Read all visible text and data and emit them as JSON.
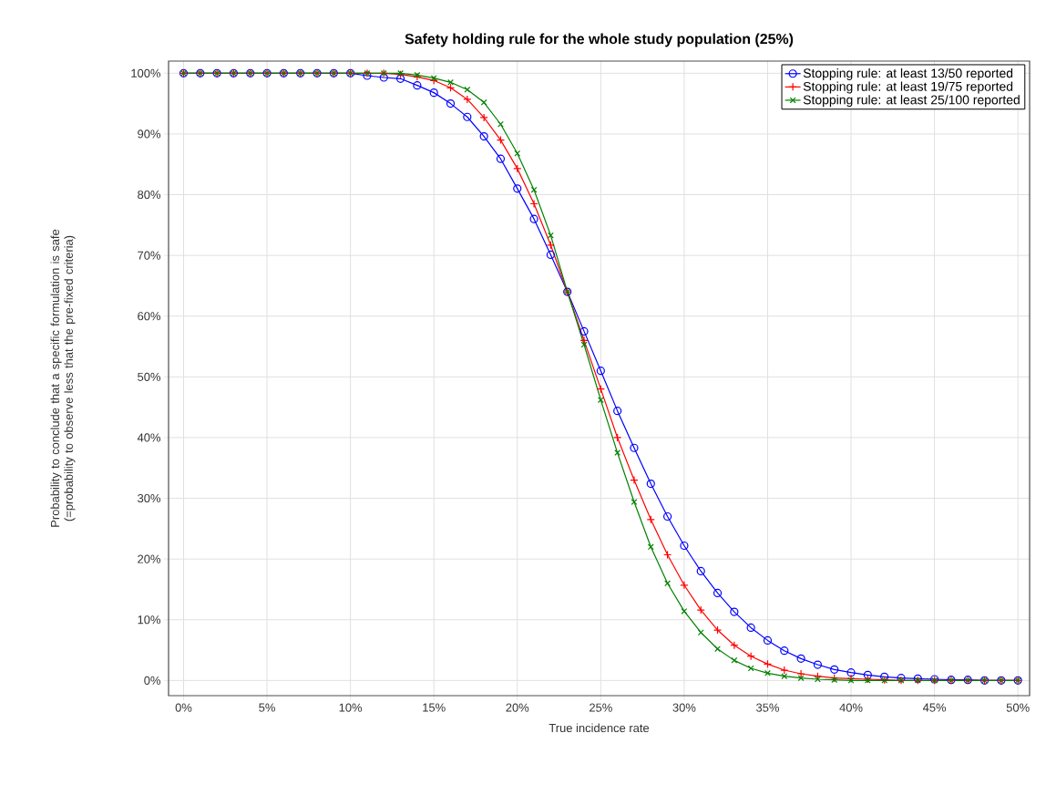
{
  "chart_data": {
    "type": "line",
    "title": "Safety holding rule for the whole study population (25%)",
    "xlabel": "True incidence rate",
    "ylabel": "Probability to conclude that a specific formulation is safe (=probability to observe less that the pre-fixed criteria)",
    "x": [
      0,
      1,
      2,
      3,
      4,
      5,
      6,
      7,
      8,
      9,
      10,
      11,
      12,
      13,
      14,
      15,
      16,
      17,
      18,
      19,
      20,
      21,
      22,
      23,
      24,
      25,
      26,
      27,
      28,
      29,
      30,
      31,
      32,
      33,
      34,
      35,
      36,
      37,
      38,
      39,
      40,
      41,
      42,
      43,
      44,
      45,
      46,
      47,
      48,
      49,
      50
    ],
    "series": [
      {
        "name": "Stopping rule: at least 13/50 reported",
        "color": "#0000ff",
        "marker": "circle",
        "values": [
          100,
          100,
          100,
          100,
          100,
          100,
          100,
          100,
          100,
          100,
          100,
          99.6,
          99.3,
          99.1,
          98,
          96.8,
          95,
          92.8,
          89.6,
          85.9,
          81,
          76,
          70.1,
          64,
          57.5,
          51,
          44.4,
          38.3,
          32.4,
          27,
          22.2,
          18,
          14.4,
          11.3,
          8.7,
          6.6,
          4.9,
          3.6,
          2.6,
          1.8,
          1.3,
          0.9,
          0.6,
          0.4,
          0.3,
          0.2,
          0.1,
          0.1,
          0,
          0,
          0
        ]
      },
      {
        "name": "Stopping rule: at least 19/75 reported",
        "color": "#ff0000",
        "marker": "plus",
        "values": [
          100,
          100,
          100,
          100,
          100,
          100,
          100,
          100,
          100,
          100,
          100,
          100,
          100,
          99.8,
          99.4,
          98.8,
          97.6,
          95.7,
          92.7,
          89,
          84.3,
          78.5,
          71.7,
          64,
          56,
          48,
          40,
          33,
          26.5,
          20.7,
          15.7,
          11.6,
          8.3,
          5.8,
          4,
          2.7,
          1.7,
          1.1,
          0.7,
          0.4,
          0.3,
          0.2,
          0.1,
          0,
          0,
          0,
          0,
          0,
          0,
          0,
          0
        ]
      },
      {
        "name": "Stopping rule: at least 25/100 reported",
        "color": "#008000",
        "marker": "cross",
        "values": [
          100,
          100,
          100,
          100,
          100,
          100,
          100,
          100,
          100,
          100,
          100,
          100,
          100,
          100,
          99.7,
          99.2,
          98.5,
          97.3,
          95.2,
          91.6,
          86.8,
          80.8,
          73.3,
          64,
          55.3,
          46.2,
          37.5,
          29.4,
          22,
          16,
          11.4,
          7.9,
          5.2,
          3.3,
          2,
          1.2,
          0.7,
          0.4,
          0.2,
          0.1,
          0,
          0,
          0,
          0,
          0,
          0,
          0,
          0,
          0,
          0,
          0
        ]
      }
    ],
    "xlim": [
      -0.9,
      50.7
    ],
    "ylim": [
      -2.5,
      102
    ],
    "xticks": [
      {
        "value": 0,
        "label": "0%"
      },
      {
        "value": 5,
        "label": "5%"
      },
      {
        "value": 10,
        "label": "10%"
      },
      {
        "value": 15,
        "label": "15%"
      },
      {
        "value": 20,
        "label": "20%"
      },
      {
        "value": 25,
        "label": "25%"
      },
      {
        "value": 30,
        "label": "30%"
      },
      {
        "value": 35,
        "label": "35%"
      },
      {
        "value": 40,
        "label": "40%"
      },
      {
        "value": 45,
        "label": "45%"
      },
      {
        "value": 50,
        "label": "50%"
      }
    ],
    "yticks": [
      {
        "value": 0,
        "label": "0%"
      },
      {
        "value": 10,
        "label": "10%"
      },
      {
        "value": 20,
        "label": "20%"
      },
      {
        "value": 30,
        "label": "30%"
      },
      {
        "value": 40,
        "label": "40%"
      },
      {
        "value": 50,
        "label": "50%"
      },
      {
        "value": 60,
        "label": "60%"
      },
      {
        "value": 70,
        "label": "70%"
      },
      {
        "value": 80,
        "label": "80%"
      },
      {
        "value": 90,
        "label": "90%"
      },
      {
        "value": 100,
        "label": "100%"
      }
    ],
    "grid": true,
    "legend": "top right",
    "line_style": "solid"
  }
}
